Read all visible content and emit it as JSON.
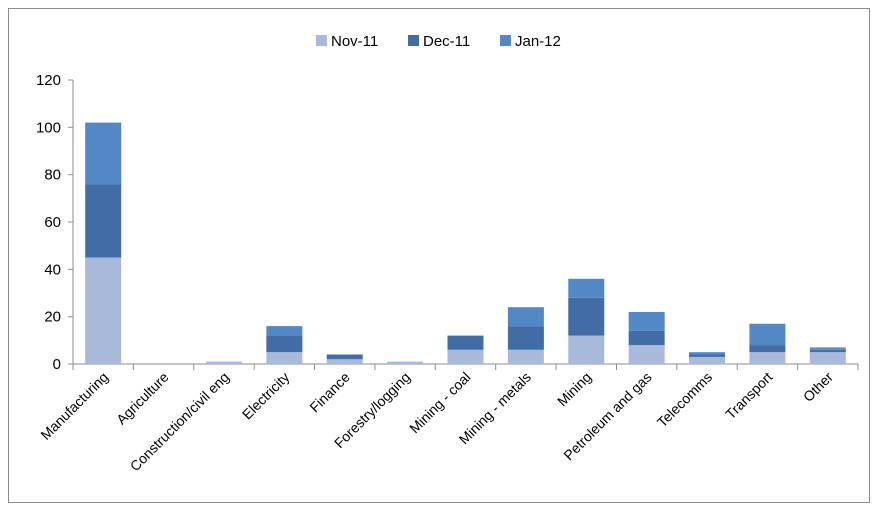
{
  "chart_data": {
    "type": "bar",
    "stacked": true,
    "categories": [
      "Manufacturing",
      "Agriculture",
      "Construction/civil eng",
      "Electricity",
      "Finance",
      "Forestry/logging",
      "Mining - coal",
      "Mining - metals",
      "Mining",
      "Petroleum and gas",
      "Telecomms",
      "Transport",
      "Other"
    ],
    "series": [
      {
        "name": "Nov-11",
        "color": "#a9b9d9",
        "values": [
          45,
          0,
          1,
          5,
          2,
          1,
          6,
          6,
          12,
          8,
          3,
          5,
          5
        ]
      },
      {
        "name": "Dec-11",
        "color": "#416ca6",
        "values": [
          31,
          0,
          0,
          7,
          2,
          0,
          6,
          10,
          16,
          6,
          1,
          3,
          1
        ]
      },
      {
        "name": "Jan-12",
        "color": "#5288c6",
        "values": [
          26,
          0,
          0,
          4,
          0,
          0,
          0,
          8,
          8,
          8,
          1,
          9,
          1
        ]
      }
    ],
    "ylim": [
      0,
      120
    ],
    "yticks": [
      0,
      20,
      40,
      60,
      80,
      100,
      120
    ],
    "legend_position": "top",
    "grid": false,
    "title": "",
    "xlabel": "",
    "ylabel": ""
  }
}
